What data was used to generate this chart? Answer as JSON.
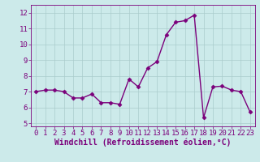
{
  "x": [
    0,
    1,
    2,
    3,
    4,
    5,
    6,
    7,
    8,
    9,
    10,
    11,
    12,
    13,
    14,
    15,
    16,
    17,
    18,
    19,
    20,
    21,
    22,
    23
  ],
  "y": [
    7.0,
    7.1,
    7.1,
    7.0,
    6.6,
    6.6,
    6.85,
    6.3,
    6.3,
    6.2,
    7.8,
    7.3,
    8.5,
    8.9,
    10.6,
    11.4,
    11.5,
    11.85,
    5.35,
    7.3,
    7.35,
    7.1,
    7.0,
    5.7
  ],
  "line_color": "#7b007b",
  "marker": "D",
  "marker_size": 2.5,
  "bg_color": "#cceaea",
  "grid_color": "#aacccc",
  "xlabel": "Windchill (Refroidissement éolien,°C)",
  "ylim": [
    4.8,
    12.5
  ],
  "xlim": [
    -0.5,
    23.5
  ],
  "yticks": [
    5,
    6,
    7,
    8,
    9,
    10,
    11,
    12
  ],
  "xticks": [
    0,
    1,
    2,
    3,
    4,
    5,
    6,
    7,
    8,
    9,
    10,
    11,
    12,
    13,
    14,
    15,
    16,
    17,
    18,
    19,
    20,
    21,
    22,
    23
  ],
  "tick_label_size": 6.5,
  "xlabel_fontsize": 7,
  "line_width": 1.0,
  "spine_color": "#7b007b",
  "tick_color": "#7b007b"
}
